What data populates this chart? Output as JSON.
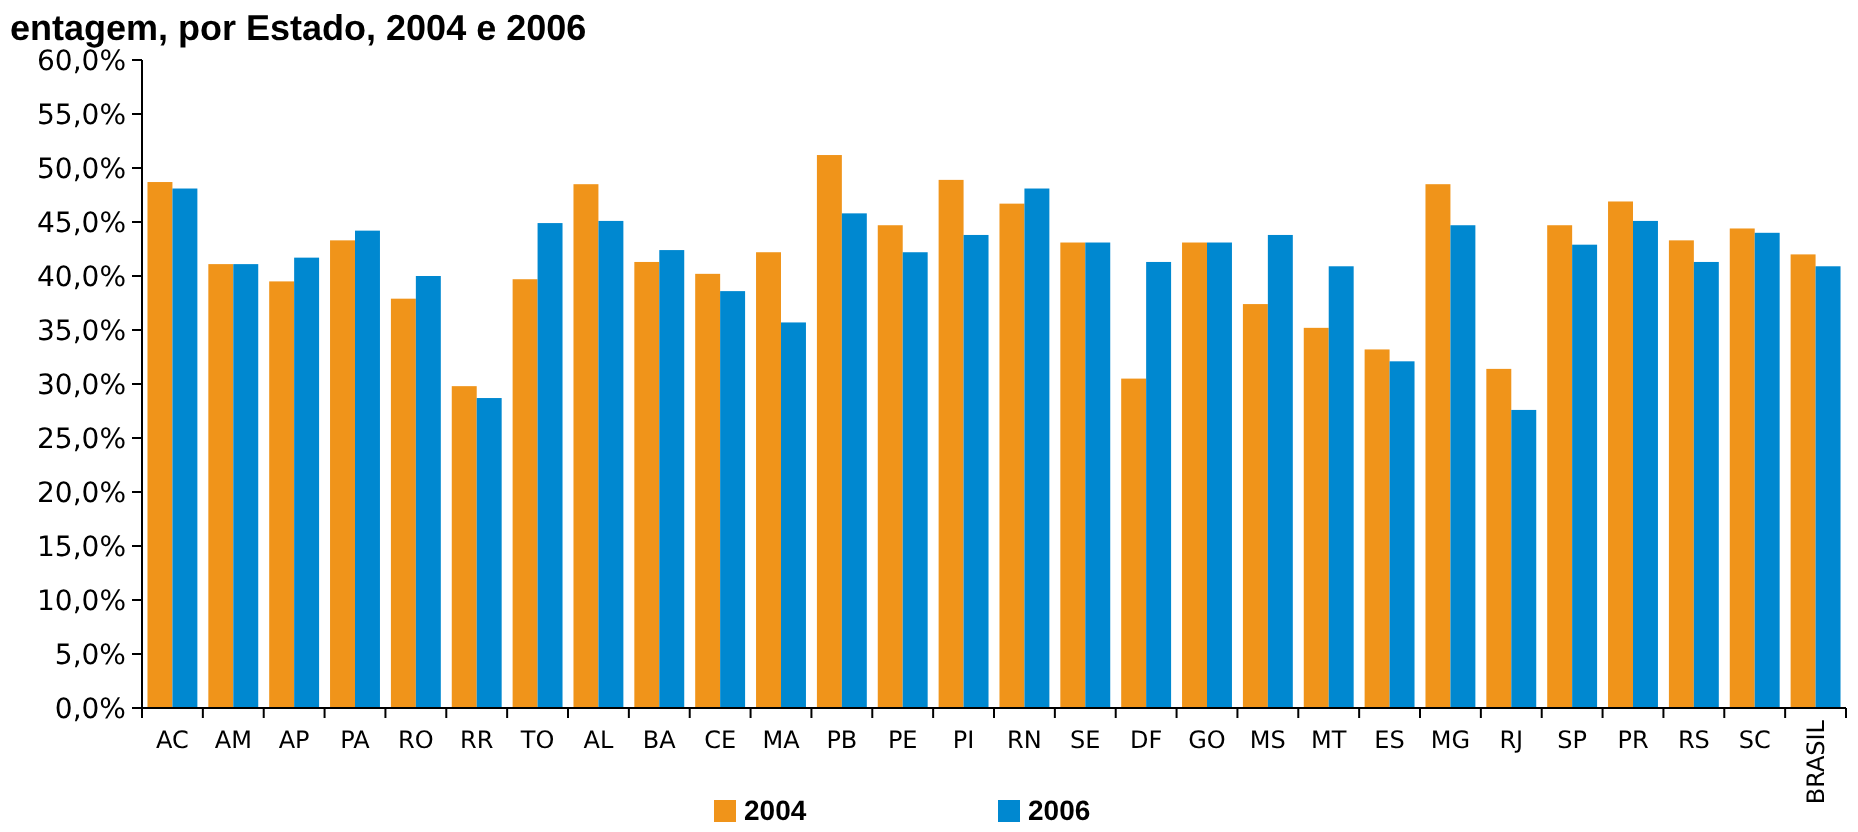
{
  "chart_data": {
    "type": "bar",
    "title": "entagem, por Estado, 2004 e 2006",
    "categories": [
      "AC",
      "AM",
      "AP",
      "PA",
      "RO",
      "RR",
      "TO",
      "AL",
      "BA",
      "CE",
      "MA",
      "PB",
      "PE",
      "PI",
      "RN",
      "SE",
      "DF",
      "GO",
      "MS",
      "MT",
      "ES",
      "MG",
      "RJ",
      "SP",
      "PR",
      "RS",
      "SC",
      "BRASIL"
    ],
    "series": [
      {
        "name": "2004",
        "color": "#f0941a",
        "values": [
          48.7,
          41.1,
          39.5,
          43.3,
          37.9,
          29.8,
          39.7,
          48.5,
          41.3,
          40.2,
          42.2,
          51.2,
          44.7,
          48.9,
          46.7,
          43.1,
          30.5,
          43.1,
          37.4,
          35.2,
          33.2,
          48.5,
          31.4,
          44.7,
          46.9,
          43.3,
          44.4,
          42.0
        ]
      },
      {
        "name": "2006",
        "color": "#0088d0",
        "values": [
          48.1,
          41.1,
          41.7,
          44.2,
          40.0,
          28.7,
          44.9,
          45.1,
          42.4,
          38.6,
          35.7,
          45.8,
          42.2,
          43.8,
          48.1,
          43.1,
          41.3,
          43.1,
          43.8,
          40.9,
          32.1,
          44.7,
          27.6,
          42.9,
          45.1,
          41.3,
          44.0,
          40.9
        ]
      }
    ],
    "ylim": [
      0,
      60
    ],
    "yticks": [
      {
        "value": 0,
        "label": "0,0%"
      },
      {
        "value": 5,
        "label": "5,0%"
      },
      {
        "value": 10,
        "label": "10,0%"
      },
      {
        "value": 15,
        "label": "15,0%"
      },
      {
        "value": 20,
        "label": "20,0%"
      },
      {
        "value": 25,
        "label": "25,0%"
      },
      {
        "value": 30,
        "label": "30,0%"
      },
      {
        "value": 35,
        "label": "35,0%"
      },
      {
        "value": 40,
        "label": "40,0%"
      },
      {
        "value": 45,
        "label": "45,0%"
      },
      {
        "value": 50,
        "label": "50,0%"
      },
      {
        "value": 55,
        "label": "55,0%"
      },
      {
        "value": 60,
        "label": "60,0%"
      }
    ],
    "grid": false,
    "legend": "bottom"
  }
}
